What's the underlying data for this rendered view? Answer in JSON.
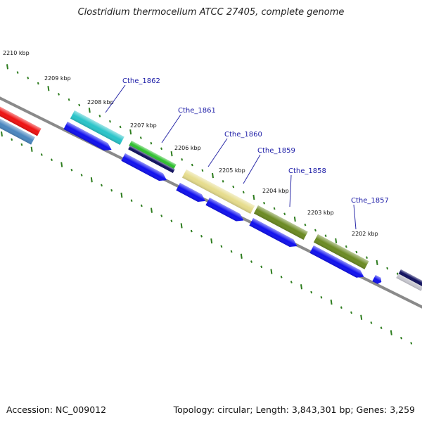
{
  "title": "Clostridium thermocellum ATCC 27405, complete genome",
  "footer": {
    "accession": "Accession: NC_009012",
    "summary": "Topology: circular; Length: 3,843,301 bp; Genes: 3,259"
  },
  "ticks": [
    "2210 kbp",
    "2209 kbp",
    "2208 kbp",
    "2207 kbp",
    "2206 kbp",
    "2205 kbp",
    "2204 kbp",
    "2203 kbp",
    "2202 kbp"
  ],
  "gene_labels": [
    "Cthe_1862",
    "Cthe_1861",
    "Cthe_1860",
    "Cthe_1859",
    "Cthe_1858",
    "Cthe_1857"
  ],
  "colors": {
    "backbone": "#8a8a8a",
    "tick": "#2e7d1f",
    "label_line": "#2a2aa8",
    "cds": "#1010ee",
    "red": "#ee1111",
    "steelblue": "#4a86bf",
    "cyan": "#29c4c9",
    "green": "#2fc02f",
    "navy": "#101060",
    "khaki": "#e6dc8c",
    "olive": "#6b8a22"
  }
}
